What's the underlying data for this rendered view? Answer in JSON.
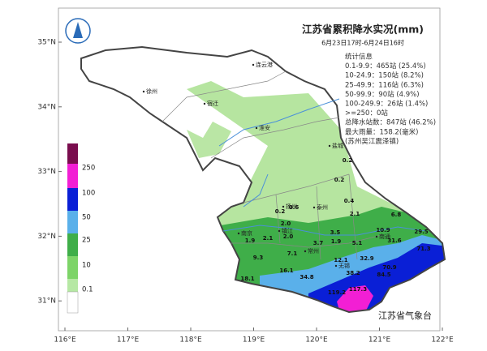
{
  "header": {
    "title": "江苏省累积降水实况(mm)",
    "subtitle": "6月23日17时-6月24日16时"
  },
  "stats": [
    "统计信息",
    "0.1-9.9：465站 (25.4%)",
    "10-24.9：150站 (8.2%)",
    "25-49.9：116站 (6.3%)",
    "50-99.9：90站 (4.9%)",
    "100-249.9：26站 (1.4%)",
    ">=250：0站",
    "总降水站数：847站 (46.2%)",
    "最大雨量：158.2(毫米)",
    "(苏州吴江震泽镇)"
  ],
  "legend": [
    "250",
    "100",
    "50",
    "25",
    "10",
    "0.1"
  ],
  "lat_labels": [
    "35°N",
    "34°N",
    "33°N",
    "32°N",
    "31°N"
  ],
  "lon_labels": [
    "116°E",
    "117°E",
    "118°E",
    "119°E",
    "120°E",
    "121°E",
    "122°E"
  ],
  "cities": [
    "徐州",
    "连云港",
    "宿迁",
    "淮安",
    "盐城",
    "扬州",
    "泰州",
    "南京",
    "镇江",
    "常州",
    "无锡",
    "南通"
  ],
  "stations": [
    "0.2",
    "0.2",
    "0.4",
    "0.2",
    "0.6",
    "2.1",
    "2.0",
    "2.0",
    "2.1",
    "1.9",
    "3.7",
    "1.9",
    "3.5",
    "5.1",
    "6.8",
    "10.9",
    "29.5",
    "31.6",
    "71.3",
    "7.1",
    "9.3",
    "12.1",
    "32.9",
    "16.1",
    "38.2",
    "70.9",
    "84.5",
    "34.8",
    "18.1",
    "119.2",
    "117.3"
  ],
  "footer": "江苏省气象台"
}
